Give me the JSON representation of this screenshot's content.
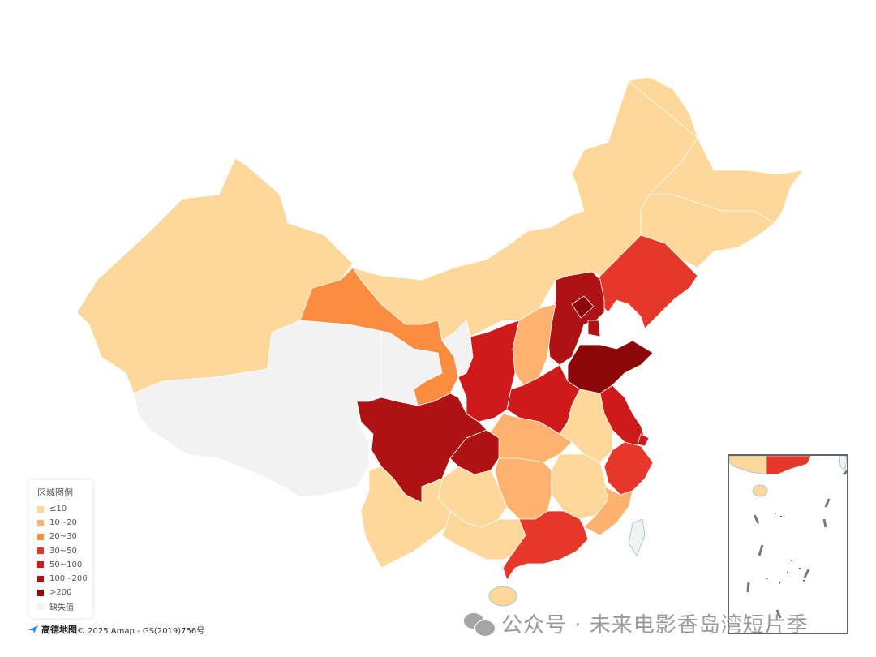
{
  "legend": {
    "title": "区域图例",
    "bins": [
      {
        "label": "≤10",
        "color": "#FDD89A"
      },
      {
        "label": "10~20",
        "color": "#FDB26E"
      },
      {
        "label": "20~30",
        "color": "#FC8C3F"
      },
      {
        "label": "30~50",
        "color": "#E6382A"
      },
      {
        "label": "50~100",
        "color": "#CF1A1C"
      },
      {
        "label": "100~200",
        "color": "#AE1212"
      },
      {
        "label": ">200",
        "color": "#8C0708"
      },
      {
        "label": "缺失值",
        "color": "#F2F2F2"
      }
    ]
  },
  "regions": {
    "xinjiang": 0,
    "tibet": 7,
    "qinghai": 7,
    "gansu": 2,
    "ningxia": 7,
    "inner_mongolia": 0,
    "heilongjiang": 0,
    "jilin": 0,
    "liaoning": 3,
    "hebei": 5,
    "beijing": 6,
    "tianjin": 5,
    "shanxi": 1,
    "shaanxi": 4,
    "shandong": 6,
    "henan": 4,
    "jiangsu": 4,
    "anhui": 0,
    "zhejiang": 3,
    "shanghai": 4,
    "hubei": 1,
    "chongqing": 5,
    "sichuan": 5,
    "hunan": 1,
    "jiangxi": 0,
    "fujian": 1,
    "guizhou": 0,
    "yunnan": 0,
    "guangxi": 0,
    "guangdong": 3,
    "hainan": 0,
    "taiwan": 7
  },
  "border_color": "#8EC1EC",
  "footer": {
    "logo": "高德地图",
    "copyright": "© 2025 Amap - GS(2019)756号"
  },
  "watermark": "公众号 · 未来电影香岛湾短片季"
}
